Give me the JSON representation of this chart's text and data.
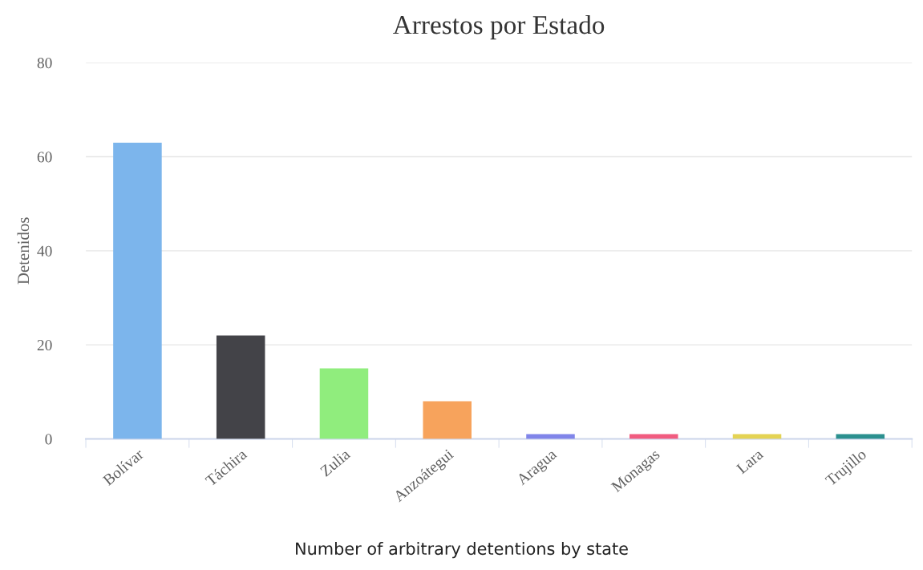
{
  "chart_data": {
    "type": "bar",
    "title": "Arrestos por Estado",
    "ylabel": "Detenidos",
    "categories": [
      "Bolívar",
      "Táchira",
      "Zulia",
      "Anzoátegui",
      "Aragua",
      "Monagas",
      "Lara",
      "Trujillo"
    ],
    "values": [
      63,
      22,
      15,
      8,
      1,
      1,
      1,
      1
    ],
    "colors": [
      "#7cb5ec",
      "#434348",
      "#90ed7d",
      "#f7a35c",
      "#8085e9",
      "#f15c80",
      "#e4d354",
      "#2b908f"
    ],
    "ylim": [
      0,
      80
    ],
    "yticks": [
      0,
      20,
      40,
      60,
      80
    ],
    "grid": "y",
    "annotations": [
      "Number of arbitrary detentions by state"
    ]
  }
}
